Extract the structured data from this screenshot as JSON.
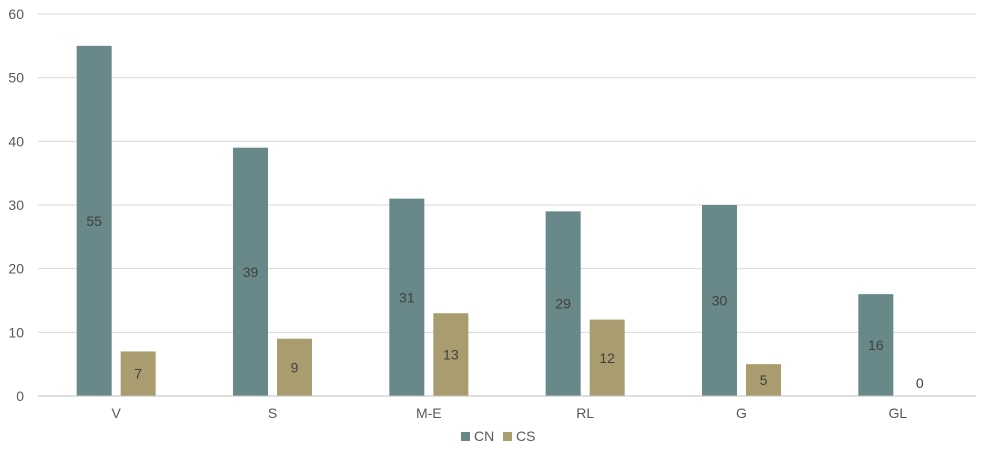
{
  "chart_data": {
    "type": "bar",
    "title": "",
    "xlabel": "",
    "ylabel": "",
    "categories": [
      "V",
      "S",
      "M-E",
      "RL",
      "G",
      "GL"
    ],
    "series": [
      {
        "name": "CN",
        "color": "#688889",
        "values": [
          55,
          39,
          31,
          29,
          30,
          16
        ]
      },
      {
        "name": "CS",
        "color": "#A99D6F",
        "values": [
          7,
          9,
          13,
          12,
          5,
          0
        ]
      }
    ],
    "ylim": [
      0,
      60
    ],
    "yticks": [
      0,
      10,
      20,
      30,
      40,
      50,
      60
    ],
    "grid": true,
    "legend_position": "bottom-center",
    "data_labels": true
  }
}
